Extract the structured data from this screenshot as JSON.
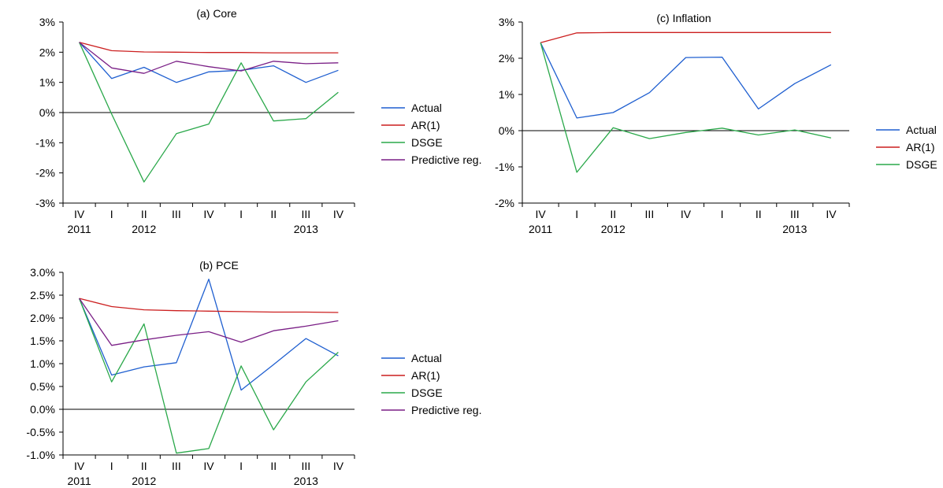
{
  "colors": {
    "Actual": "#1f5fd0",
    "AR(1)": "#cc1f1f",
    "DSGE": "#2aa84a",
    "Predictive reg.": "#7a1f86",
    "zero_line": "#000000",
    "axis": "#000000"
  },
  "chart_data": [
    {
      "type": "line",
      "title": "(a) Core",
      "categories": [
        "IV",
        "I",
        "II",
        "III",
        "IV",
        "I",
        "II",
        "III",
        "IV"
      ],
      "year_labels": [
        "2011",
        "2012",
        "2013"
      ],
      "y_ticks": [
        "3%",
        "2%",
        "1%",
        "0%",
        "-1%",
        "-2%",
        "-3%"
      ],
      "ylim": [
        -3,
        3
      ],
      "legend_placement": "right",
      "series": [
        {
          "name": "Actual",
          "values": [
            2.33,
            1.13,
            1.5,
            1.0,
            1.35,
            1.4,
            1.55,
            1.0,
            1.4
          ]
        },
        {
          "name": "AR(1)",
          "values": [
            2.33,
            2.05,
            2.01,
            2.0,
            1.99,
            1.99,
            1.98,
            1.98,
            1.98
          ]
        },
        {
          "name": "DSGE",
          "values": [
            2.33,
            -0.05,
            -2.3,
            -0.7,
            -0.38,
            1.65,
            -0.28,
            -0.2,
            0.67
          ]
        },
        {
          "name": "Predictive reg.",
          "values": [
            2.33,
            1.48,
            1.3,
            1.7,
            1.52,
            1.38,
            1.7,
            1.62,
            1.65
          ]
        }
      ]
    },
    {
      "type": "line",
      "title": "(b) PCE",
      "categories": [
        "IV",
        "I",
        "II",
        "III",
        "IV",
        "I",
        "II",
        "III",
        "IV"
      ],
      "year_labels": [
        "2011",
        "2012",
        "2013"
      ],
      "y_ticks": [
        "3.0%",
        "2.5%",
        "2.0%",
        "1.5%",
        "1.0%",
        "0.5%",
        "0.0%",
        "-0.5%",
        "-1.0%"
      ],
      "ylim": [
        -1,
        3
      ],
      "legend_placement": "right",
      "series": [
        {
          "name": "Actual",
          "values": [
            2.43,
            0.75,
            0.93,
            1.02,
            2.85,
            0.42,
            0.98,
            1.55,
            1.17
          ]
        },
        {
          "name": "AR(1)",
          "values": [
            2.43,
            2.25,
            2.18,
            2.16,
            2.15,
            2.14,
            2.13,
            2.13,
            2.12
          ]
        },
        {
          "name": "DSGE",
          "values": [
            2.43,
            0.6,
            1.87,
            -0.96,
            -0.86,
            0.95,
            -0.45,
            0.6,
            1.25
          ]
        },
        {
          "name": "Predictive reg.",
          "values": [
            2.43,
            1.4,
            1.52,
            1.62,
            1.7,
            1.47,
            1.72,
            1.82,
            1.94
          ]
        }
      ]
    },
    {
      "type": "line",
      "title": "(c) Inflation",
      "categories": [
        "IV",
        "I",
        "II",
        "III",
        "IV",
        "I",
        "II",
        "III",
        "IV"
      ],
      "year_labels": [
        "2011",
        "2012",
        "2013"
      ],
      "y_ticks": [
        "3%",
        "2%",
        "1%",
        "0%",
        "-1%",
        "-2%"
      ],
      "ylim": [
        -2,
        3
      ],
      "legend_placement": "right",
      "series": [
        {
          "name": "Actual",
          "values": [
            2.43,
            0.35,
            0.5,
            1.05,
            2.02,
            2.03,
            0.6,
            1.3,
            1.82
          ]
        },
        {
          "name": "AR(1)",
          "values": [
            2.43,
            2.7,
            2.71,
            2.71,
            2.71,
            2.71,
            2.71,
            2.71,
            2.71
          ]
        },
        {
          "name": "DSGE",
          "values": [
            2.43,
            -1.15,
            0.08,
            -0.22,
            -0.05,
            0.07,
            -0.12,
            0.02,
            -0.2
          ]
        }
      ]
    }
  ]
}
